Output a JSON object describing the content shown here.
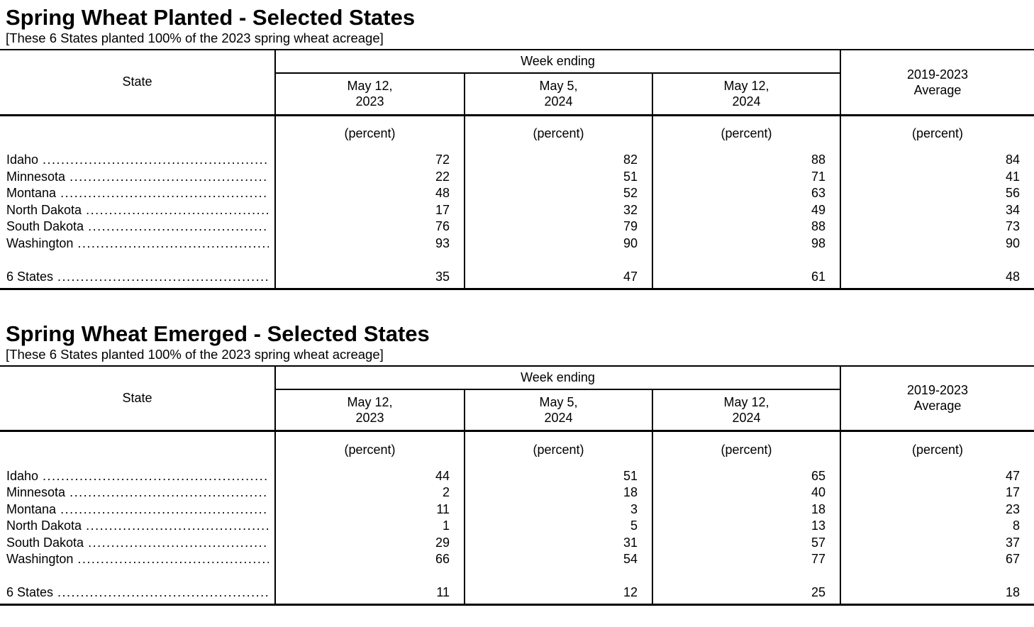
{
  "page": {
    "background": "#ffffff",
    "text_color": "#000000"
  },
  "leader_dots": "..........................................................................................",
  "tables": [
    {
      "title": "Spring Wheat Planted - Selected States",
      "subtitle": "[These 6 States planted 100% of the 2023 spring wheat acreage]",
      "header": {
        "state_label": "State",
        "week_ending_label": "Week ending",
        "week_columns": [
          {
            "line1": "May 12,",
            "line2": "2023"
          },
          {
            "line1": "May 5,",
            "line2": "2024"
          },
          {
            "line1": "May 12,",
            "line2": "2024"
          }
        ],
        "average_line1": "2019-2023",
        "average_line2": "Average",
        "unit_label": "(percent)"
      },
      "rows": [
        {
          "state": "Idaho",
          "values": [
            "72",
            "82",
            "88",
            "84"
          ]
        },
        {
          "state": "Minnesota",
          "values": [
            "22",
            "51",
            "71",
            "41"
          ]
        },
        {
          "state": "Montana",
          "values": [
            "48",
            "52",
            "63",
            "56"
          ]
        },
        {
          "state": "North Dakota",
          "values": [
            "17",
            "32",
            "49",
            "34"
          ]
        },
        {
          "state": "South Dakota",
          "values": [
            "76",
            "79",
            "88",
            "73"
          ]
        },
        {
          "state": "Washington",
          "values": [
            "93",
            "90",
            "98",
            "90"
          ]
        }
      ],
      "total": {
        "state": "6 States",
        "values": [
          "35",
          "47",
          "61",
          "48"
        ]
      }
    },
    {
      "title": "Spring Wheat Emerged - Selected States",
      "subtitle": "[These 6 States planted 100% of the 2023 spring wheat acreage]",
      "header": {
        "state_label": "State",
        "week_ending_label": "Week ending",
        "week_columns": [
          {
            "line1": "May 12,",
            "line2": "2023"
          },
          {
            "line1": "May 5,",
            "line2": "2024"
          },
          {
            "line1": "May 12,",
            "line2": "2024"
          }
        ],
        "average_line1": "2019-2023",
        "average_line2": "Average",
        "unit_label": "(percent)"
      },
      "rows": [
        {
          "state": "Idaho",
          "values": [
            "44",
            "51",
            "65",
            "47"
          ]
        },
        {
          "state": "Minnesota",
          "values": [
            "2",
            "18",
            "40",
            "17"
          ]
        },
        {
          "state": "Montana",
          "values": [
            "11",
            "3",
            "18",
            "23"
          ]
        },
        {
          "state": "North Dakota",
          "values": [
            "1",
            "5",
            "13",
            "8"
          ]
        },
        {
          "state": "South Dakota",
          "values": [
            "29",
            "31",
            "57",
            "37"
          ]
        },
        {
          "state": "Washington",
          "values": [
            "66",
            "54",
            "77",
            "67"
          ]
        }
      ],
      "total": {
        "state": "6 States",
        "values": [
          "11",
          "12",
          "25",
          "18"
        ]
      }
    }
  ]
}
